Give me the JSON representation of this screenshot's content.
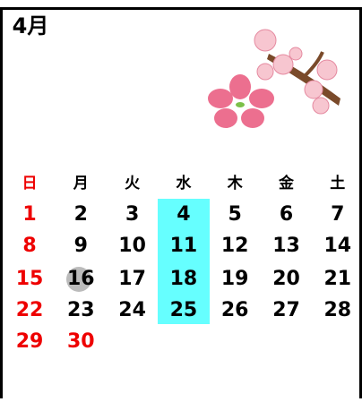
{
  "header": {
    "title": "4月"
  },
  "weekdays": [
    "日",
    "月",
    "火",
    "水",
    "木",
    "金",
    "土"
  ],
  "weeks": [
    [
      1,
      2,
      3,
      4,
      5,
      6,
      7
    ],
    [
      8,
      9,
      10,
      11,
      12,
      13,
      14
    ],
    [
      15,
      16,
      17,
      18,
      19,
      20,
      21
    ],
    [
      22,
      23,
      24,
      25,
      26,
      27,
      28
    ],
    [
      29,
      30
    ]
  ]
}
